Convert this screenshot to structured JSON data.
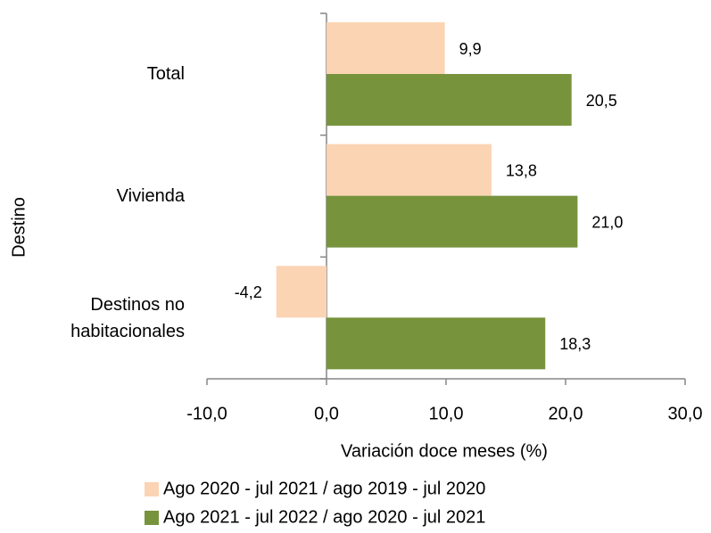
{
  "chart_data": {
    "type": "hbar",
    "categories": [
      "Total",
      "Vivienda",
      "Destinos no habitacionales"
    ],
    "series": [
      {
        "name": "Ago 2020 - jul 2021 / ago 2019 - jul 2020",
        "color": "#fbd4b4",
        "values": [
          9.9,
          13.8,
          -4.2
        ],
        "value_labels": [
          "9,9",
          "13,8",
          "-4,2"
        ]
      },
      {
        "name": "Ago 2021 - jul 2022 / ago 2020 - jul 2021",
        "color": "#77933c",
        "values": [
          20.5,
          21.0,
          18.3
        ],
        "value_labels": [
          "20,5",
          "21,0",
          "18,3"
        ]
      }
    ],
    "xlabel": "Variación doce meses (%)",
    "ylabel": "Destino",
    "xlim": [
      -10,
      30
    ],
    "xticks": [
      {
        "value": -10,
        "label": "-10,0"
      },
      {
        "value": 0,
        "label": "0,0"
      },
      {
        "value": 10,
        "label": "10,0"
      },
      {
        "value": 20,
        "label": "20,0"
      },
      {
        "value": 30,
        "label": "30,0"
      }
    ],
    "grid": false,
    "legend": "bottom"
  }
}
